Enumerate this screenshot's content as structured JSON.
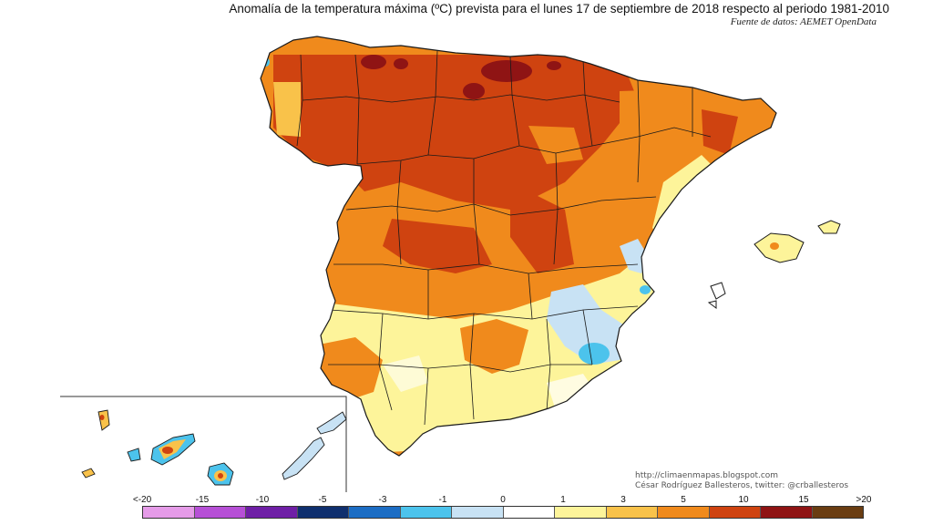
{
  "header": {
    "title": "Anomalía de la temperatura máxima (ºC) prevista para el lunes 17 de septiembre de 2018 respecto al periodo 1981-2010",
    "source": "Fuente de datos: AEMET OpenData"
  },
  "credits": {
    "blog": "http://climaenmapas.blogspot.com",
    "author": "César Rodríguez Ballesteros, twitter: @crballesteros"
  },
  "legend": {
    "ticks": [
      "<-20",
      "-15",
      "-10",
      "-5",
      "-3",
      "-1",
      "0",
      "1",
      "3",
      "5",
      "10",
      "15",
      ">20"
    ],
    "colors": [
      "#e59be8",
      "#b64fd6",
      "#6f1fa6",
      "#0f2f6e",
      "#1c6dc4",
      "#4cc3ec",
      "#c8e2f4",
      "#ffffff",
      "#fdf49a",
      "#f9c24a",
      "#f08a1c",
      "#cf4310",
      "#8f1414",
      "#6a3d12"
    ]
  },
  "map": {
    "region": "España peninsular, Baleares y Canarias",
    "background_color": "#ffffff",
    "border_color": "#1a1a1a"
  }
}
